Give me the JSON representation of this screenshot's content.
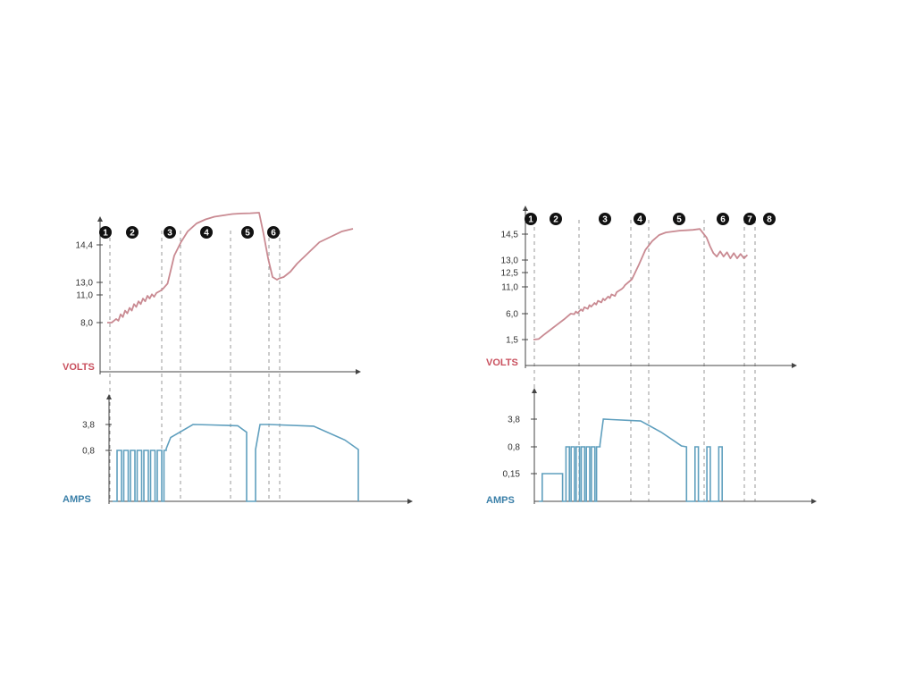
{
  "colors": {
    "volts": "#c9505e",
    "volts_line": "#c98a92",
    "amps": "#3a7fa8",
    "amps_line": "#5f9fbe",
    "axis": "#444444",
    "divider": "#999999"
  },
  "chart_data": [
    {
      "type": "line",
      "panel": "left",
      "steps": [
        "1",
        "2",
        "3",
        "4",
        "5",
        "6"
      ],
      "volts": {
        "ylabel": "VOLTS",
        "ticks": [
          "8,0",
          "11,0",
          "13,0",
          "14,4"
        ],
        "series": [
          {
            "x": [
              0,
              2,
              4,
              5,
              6,
              7,
              8,
              9,
              10,
              11,
              12,
              13,
              14,
              15,
              16,
              17,
              18,
              19,
              20,
              21,
              22,
              23,
              24,
              25,
              26,
              27,
              28,
              30,
              33,
              36,
              40,
              44,
              48,
              52,
              56,
              60,
              64,
              68,
              70,
              72,
              74,
              76,
              77,
              79,
              82,
              85,
              90,
              95,
              100,
              105,
              110
            ],
            "y": [
              8.0,
              8.0,
              8.4,
              8.2,
              8.9,
              8.6,
              9.3,
              9.0,
              9.6,
              9.3,
              10.0,
              9.7,
              10.3,
              10.0,
              10.6,
              10.3,
              10.9,
              10.6,
              11.1,
              10.8,
              11.3,
              11.5,
              11.7,
              12.0,
              12.4,
              12.8,
              13.3,
              14.0,
              14.5,
              14.9,
              15.2,
              15.35,
              15.45,
              15.5,
              15.55,
              15.57,
              15.58,
              15.6,
              14.8,
              13.9,
              13.2,
              13.1,
              13.15,
              13.2,
              13.4,
              13.7,
              14.1,
              14.5,
              14.7,
              14.9,
              15.0
            ]
          }
        ]
      },
      "amps": {
        "ylabel": "AMPS",
        "ticks": [
          "0,8",
          "3,8"
        ],
        "series": [
          {
            "x": [
              0,
              2,
              2,
              4,
              4,
              5,
              5,
              7,
              7,
              8,
              8,
              10,
              10,
              11,
              11,
              13,
              13,
              14,
              14,
              16,
              16,
              17,
              17,
              19,
              19,
              20,
              20,
              22,
              22,
              23,
              23,
              24,
              24,
              26,
              36,
              44,
              56,
              60,
              60,
              64,
              64,
              66,
              70,
              90,
              104,
              110,
              110
            ],
            "y": [
              0,
              0,
              0.8,
              0.8,
              0,
              0,
              0.8,
              0.8,
              0,
              0,
              0.8,
              0.8,
              0,
              0,
              0.8,
              0.8,
              0,
              0,
              0.8,
              0.8,
              0,
              0,
              0.8,
              0.8,
              0,
              0,
              0.8,
              0.8,
              0,
              0,
              0.8,
              0.8,
              1.0,
              2.3,
              3.8,
              3.75,
              3.65,
              2.9,
              0,
              0,
              0.9,
              3.8,
              3.8,
              3.6,
              2.0,
              0.9,
              0
            ]
          }
        ]
      }
    },
    {
      "type": "line",
      "panel": "right",
      "steps": [
        "1",
        "2",
        "3",
        "4",
        "5",
        "6",
        "7",
        "8"
      ],
      "volts": {
        "ylabel": "VOLTS",
        "ticks": [
          "1,5",
          "6,0",
          "11,0",
          "12,5",
          "13,0",
          "14,5"
        ],
        "series": [
          {
            "x": [
              0,
              3,
              6,
              10,
              14,
              18,
              20,
              22,
              24,
              25,
              26,
              28,
              29,
              30,
              32,
              33,
              34,
              36,
              37,
              38,
              40,
              41,
              42,
              44,
              45,
              46,
              48,
              49,
              50,
              52,
              53,
              54,
              58,
              62,
              66,
              70,
              74,
              78,
              82,
              86,
              90,
              94,
              98,
              102,
              104,
              106,
              108,
              110,
              112,
              114,
              116,
              118,
              120,
              122,
              124,
              126
            ],
            "y": [
              1.5,
              1.6,
              2.3,
              3.2,
              4.1,
              5.0,
              5.5,
              6.0,
              5.9,
              6.4,
              6.1,
              6.8,
              6.5,
              7.2,
              6.9,
              7.6,
              7.3,
              8.0,
              7.7,
              8.4,
              8.1,
              8.8,
              8.5,
              9.2,
              8.9,
              9.6,
              9.3,
              10.0,
              10.2,
              10.6,
              10.9,
              11.2,
              11.8,
              12.8,
              13.6,
              14.1,
              14.45,
              14.6,
              14.65,
              14.7,
              14.72,
              14.75,
              14.8,
              14.3,
              13.8,
              13.4,
              13.2,
              13.5,
              13.2,
              13.45,
              13.1,
              13.4,
              13.1,
              13.35,
              13.1,
              13.3
            ]
          }
        ]
      },
      "amps": {
        "ylabel": "AMPS",
        "ticks": [
          "0,15",
          "0,8",
          "3,8"
        ],
        "series": [
          {
            "x": [
              0,
              2,
              2,
              14,
              14,
              16,
              16,
              18,
              18,
              19,
              19,
              21,
              21,
              22,
              22,
              24,
              24,
              25,
              25,
              27,
              27,
              28,
              28,
              30,
              30,
              31,
              31,
              33,
              33,
              34,
              34,
              36,
              36,
              38,
              43,
              60,
              72,
              84,
              87,
              87,
              92,
              92,
              94,
              94,
              99,
              99,
              101,
              101,
              106,
              106,
              108,
              108
            ],
            "y": [
              0,
              0,
              0.15,
              0.15,
              0,
              0,
              0.8,
              0.8,
              0,
              0,
              0.8,
              0.8,
              0,
              0,
              0.8,
              0.8,
              0,
              0,
              0.8,
              0.8,
              0,
              0,
              0.8,
              0.8,
              0,
              0,
              0.8,
              0.8,
              0,
              0,
              0.8,
              0.8,
              1.0,
              3.8,
              3.75,
              3.6,
              2.4,
              0.9,
              0.8,
              0,
              0,
              0.8,
              0.8,
              0,
              0,
              0.8,
              0.8,
              0,
              0,
              0.8,
              0.8,
              0
            ]
          }
        ]
      }
    }
  ]
}
